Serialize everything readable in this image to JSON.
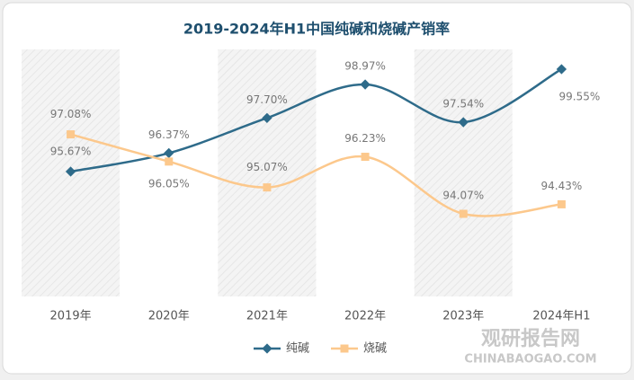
{
  "chart_data": {
    "type": "line",
    "title": "2019-2024年H1中国纯碱和烧碱产销率",
    "categories": [
      "2019年",
      "2020年",
      "2021年",
      "2022年",
      "2023年",
      "2024年H1"
    ],
    "series": [
      {
        "name": "纯碱",
        "color": "#2e6b8a",
        "values": [
          95.67,
          96.37,
          97.7,
          98.97,
          97.54,
          99.55
        ],
        "value_labels": [
          "95.67%",
          "96.37%",
          "97.70%",
          "98.97%",
          "97.54%",
          "99.55%"
        ]
      },
      {
        "name": "烧碱",
        "color": "#fcc88c",
        "values": [
          97.08,
          96.05,
          95.07,
          96.23,
          94.07,
          94.43
        ],
        "value_labels": [
          "97.08%",
          "96.05%",
          "95.07%",
          "96.23%",
          "94.07%",
          "94.43%"
        ]
      }
    ],
    "legend": "bottom",
    "watermark": {
      "name": "观研报告网",
      "url": "CHINABAOGAO.COM"
    }
  }
}
